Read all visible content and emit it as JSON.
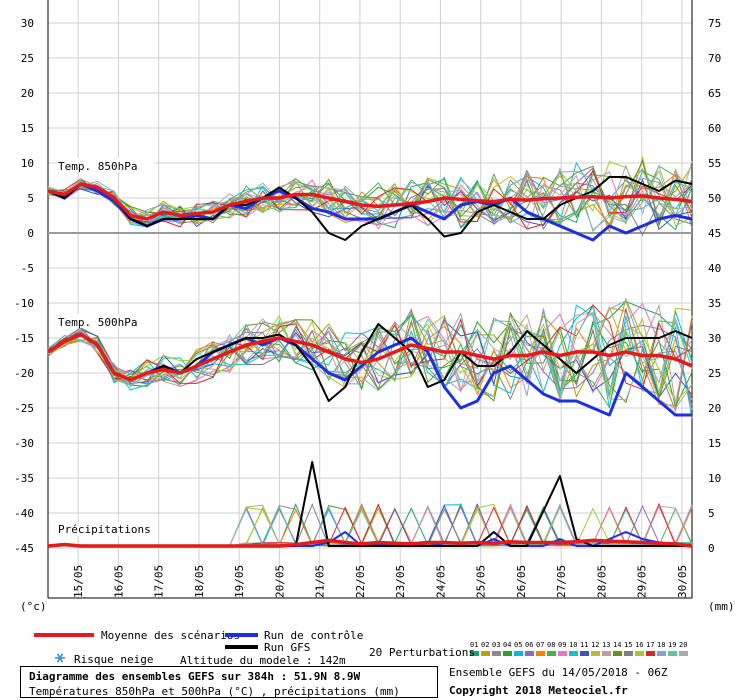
{
  "chart_data": {
    "type": "line",
    "left_ticks": [
      30,
      25,
      20,
      15,
      10,
      5,
      0,
      -5,
      -10,
      -15,
      -20,
      -25,
      -30,
      -35,
      -40,
      -45
    ],
    "right_ticks": [
      75,
      70,
      65,
      60,
      55,
      50,
      45,
      40,
      35,
      30,
      25,
      20,
      15,
      10,
      5,
      0
    ],
    "left_unit": "(°c)",
    "right_unit": "(mm)",
    "dates": [
      "15/05",
      "16/05",
      "17/05",
      "18/05",
      "19/05",
      "20/05",
      "21/05",
      "22/05",
      "23/05",
      "24/05",
      "25/05",
      "26/05",
      "27/05",
      "28/05",
      "29/05",
      "30/05"
    ],
    "x_range_hours": [
      0,
      384
    ],
    "sections": [
      {
        "label": "Temp. 850hPa"
      },
      {
        "label": "Temp. 500hPa"
      },
      {
        "label": "Précipitations"
      }
    ],
    "series": {
      "mean_850": {
        "name": "Moyenne des scénarios",
        "color": "#e41a1c",
        "values": [
          6,
          5.5,
          7,
          6.5,
          5,
          2.5,
          2,
          3,
          2.5,
          2.8,
          3,
          4,
          4.5,
          5,
          5,
          5.5,
          5.5,
          5,
          4.5,
          4,
          3.8,
          4,
          4.2,
          4.5,
          5,
          4.8,
          4.6,
          4.5,
          4.8,
          4.7,
          4.9,
          5,
          5.1,
          5.2,
          5,
          5.2,
          5.3,
          5,
          4.8,
          4.5
        ]
      },
      "control_850": {
        "name": "Run de contrôle",
        "color": "#1f2fe0",
        "values": [
          6,
          5,
          7,
          6,
          4.5,
          2,
          1,
          2,
          2,
          2.5,
          2,
          4,
          3.5,
          5,
          6,
          5,
          3.5,
          3,
          2,
          2,
          2,
          3,
          4,
          3,
          2,
          4,
          4.5,
          4,
          5,
          3,
          2,
          1,
          0,
          -1,
          1,
          0,
          1,
          2,
          2.5,
          2
        ]
      },
      "gfs_850": {
        "name": "Run GFS",
        "color": "#000000",
        "values": [
          6,
          5,
          7,
          6.5,
          5,
          2,
          1,
          2,
          2,
          2,
          2,
          4,
          4,
          5,
          6.5,
          5,
          3,
          0,
          -1,
          1,
          2,
          3,
          4,
          2,
          -0.5,
          0,
          3,
          4,
          3,
          2,
          2,
          4,
          5,
          6,
          8,
          8,
          7,
          6,
          7.5,
          7
        ]
      },
      "mean_500": {
        "color": "#e41a1c",
        "values": [
          -17,
          -15.5,
          -14.5,
          -16,
          -20,
          -21,
          -20,
          -19.5,
          -20,
          -19,
          -18,
          -17,
          -16,
          -15.5,
          -15,
          -15.5,
          -16,
          -17,
          -18,
          -18.5,
          -18,
          -17,
          -16,
          -16.5,
          -17,
          -17,
          -17.5,
          -18,
          -17.5,
          -17.5,
          -17,
          -17.5,
          -17,
          -17,
          -17.5,
          -17,
          -17.5,
          -17.5,
          -18,
          -19
        ]
      },
      "control_500": {
        "color": "#1f2fe0",
        "values": [
          -17,
          -15.5,
          -14.5,
          -16,
          -20,
          -21,
          -20,
          -19,
          -20,
          -19,
          -17,
          -16,
          -15,
          -16,
          -15,
          -16,
          -18,
          -20,
          -21,
          -19,
          -17,
          -16,
          -15,
          -17,
          -22,
          -25,
          -24,
          -20,
          -19,
          -21,
          -23,
          -24,
          -24,
          -25,
          -26,
          -20,
          -22,
          -24,
          -26,
          -26
        ]
      },
      "gfs_500": {
        "color": "#000000",
        "values": [
          -17,
          -15.5,
          -14.5,
          -16,
          -20,
          -21,
          -20,
          -19,
          -20,
          -18,
          -17,
          -16,
          -15,
          -15,
          -14.5,
          -16,
          -19,
          -24,
          -22,
          -17,
          -13,
          -15,
          -17,
          -22,
          -21,
          -17,
          -19,
          -19,
          -17,
          -14,
          -16,
          -18,
          -20,
          -18,
          -16,
          -15,
          -15,
          -15,
          -14,
          -15
        ]
      },
      "mean_precip": {
        "color": "#e41a1c",
        "values": [
          0,
          0.2,
          0,
          0,
          0,
          0,
          0,
          0,
          0,
          0,
          0,
          0,
          0,
          0,
          0,
          0.2,
          0.5,
          0.8,
          0.5,
          0.3,
          0.5,
          0.4,
          0.3,
          0.5,
          0.5,
          0.4,
          0.5,
          0.4,
          0.6,
          0.5,
          0.5,
          0.5,
          0.6,
          0.8,
          0.7,
          0.6,
          0.5,
          0.4,
          0.3,
          0
        ]
      },
      "control_precip": {
        "color": "#1f2fe0",
        "values": [
          0,
          0.3,
          0,
          0,
          0,
          0,
          0,
          0,
          0,
          0,
          0,
          0,
          0,
          0,
          0,
          0,
          0,
          0.5,
          2,
          0,
          0.2,
          0,
          0,
          0.5,
          0,
          0,
          0,
          1,
          0,
          0,
          0,
          1,
          0,
          0,
          1,
          2,
          1,
          0.5,
          0.3,
          0
        ]
      },
      "gfs_precip": {
        "color": "#000000",
        "values": [
          0,
          0.3,
          0,
          0,
          0,
          0,
          0,
          0,
          0,
          0,
          0,
          0,
          0,
          0,
          0,
          0,
          12,
          0,
          0,
          0,
          0,
          0,
          0,
          0,
          0,
          0,
          0,
          2,
          0,
          0,
          5,
          10,
          1,
          0,
          0,
          0,
          0,
          0,
          0,
          0
        ]
      },
      "perturbations": {
        "name": "20 Perturbations",
        "count": 20,
        "colors": [
          "#1b9e77",
          "#b8a300",
          "#8c8c8c",
          "#2ca02c",
          "#00bcd4",
          "#9467bd",
          "#ff7f0e",
          "#4caf50",
          "#e377c2",
          "#17becf",
          "#3f51b5",
          "#bcbd22",
          "#c49c94",
          "#6b8e23",
          "#7f7f7f",
          "#9acd32",
          "#d62728",
          "#8da0cb",
          "#66c2a5",
          "#aaaaaa"
        ]
      }
    }
  },
  "legend": {
    "mean": "Moyenne des scénarios",
    "control": "Run de contrôle",
    "gfs": "Run GFS",
    "snow": "Risque neige",
    "altitude": "Altitude du modele : 142m",
    "perturbations": "20 Perturbations",
    "pert_numbers": [
      "01",
      "02",
      "03",
      "04",
      "05",
      "06",
      "07",
      "08",
      "09",
      "10",
      "11",
      "12",
      "13",
      "14",
      "15",
      "16",
      "17",
      "18",
      "19",
      "20"
    ]
  },
  "colors": {
    "mean": "#e41a1c",
    "control": "#1f2fe0",
    "gfs": "#000000",
    "snow": "#3a8fd8",
    "zero_line": "#9a9a9a"
  },
  "footer": {
    "title": "Diagramme des ensembles GEFS sur 384h : 51.9N 8.9W",
    "subtitle": "Températures 850hPa et 500hPa (°C) , précipitations (mm)",
    "run_info": "Ensemble GEFS du 14/05/2018 - 06Z",
    "copyright": "Copyright 2018 Meteociel.fr"
  }
}
